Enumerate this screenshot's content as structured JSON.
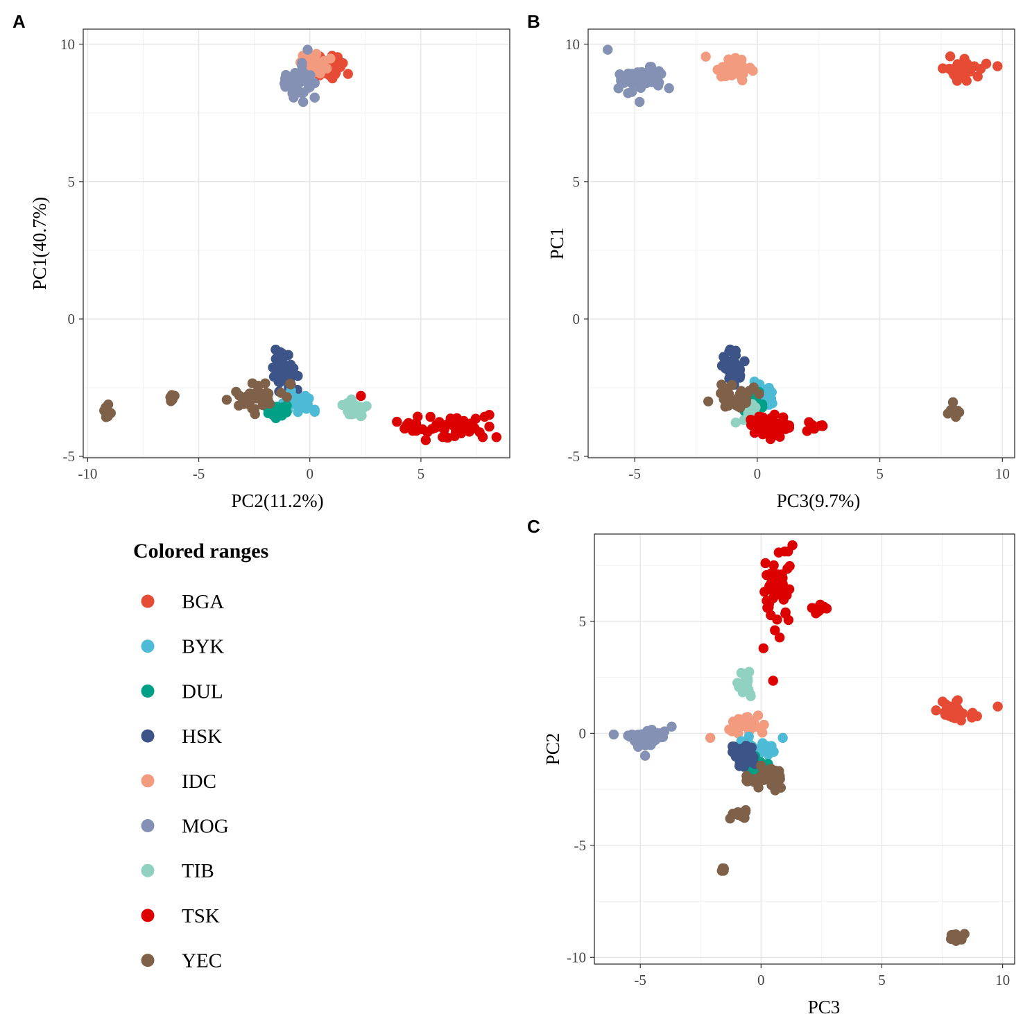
{
  "figure": {
    "panel_letters": [
      "A",
      "B",
      "C"
    ]
  },
  "colors": {
    "BGA": "#E64B35",
    "BYK": "#4DBBD5",
    "DUL": "#00A087",
    "HSK": "#3C5488",
    "IDC": "#F39B7F",
    "MOG": "#8491B4",
    "TIB": "#91D1C2",
    "TSK": "#DC0000",
    "YEC": "#7E6148"
  },
  "legend": {
    "title": "Colored ranges",
    "items": [
      "BGA",
      "BYK",
      "DUL",
      "HSK",
      "IDC",
      "MOG",
      "TIB",
      "TSK",
      "YEC"
    ]
  },
  "chart_data": [
    {
      "panel": "A",
      "type": "scatter",
      "xlabel": "PC2(11.2%)",
      "ylabel": "PC1(40.7%)",
      "xlim": [
        -10.2,
        9.0
      ],
      "ylim": [
        -5.05,
        10.55
      ],
      "xticks": [
        -10,
        -5,
        0,
        5
      ],
      "yticks": [
        -5,
        0,
        5,
        10
      ],
      "grid": true,
      "clusters": [
        {
          "group": "BGA",
          "center": [
            1.0,
            9.1
          ],
          "spread": [
            0.45,
            0.3
          ],
          "n": 28
        },
        {
          "group": "IDC",
          "center": [
            0.3,
            9.25
          ],
          "spread": [
            0.45,
            0.25
          ],
          "n": 26
        },
        {
          "group": "MOG",
          "center": [
            -0.5,
            8.7
          ],
          "spread": [
            0.45,
            0.4
          ],
          "n": 40
        },
        {
          "group": "HSK",
          "center": [
            -1.1,
            -1.85
          ],
          "spread": [
            0.35,
            0.5
          ],
          "n": 42
        },
        {
          "group": "BYK",
          "center": [
            -0.5,
            -2.95
          ],
          "spread": [
            0.45,
            0.3
          ],
          "n": 25
        },
        {
          "group": "DUL",
          "center": [
            -1.4,
            -3.35
          ],
          "spread": [
            0.4,
            0.2
          ],
          "n": 30
        },
        {
          "group": "TIB",
          "center": [
            2.0,
            -3.25
          ],
          "spread": [
            0.4,
            0.25
          ],
          "n": 22
        },
        {
          "group": "TSK",
          "center": [
            6.0,
            -3.85
          ],
          "spread": [
            1.3,
            0.35
          ],
          "n": 48
        },
        {
          "group": "YEC",
          "center": [
            -2.3,
            -2.9
          ],
          "spread": [
            0.9,
            0.35
          ],
          "n": 38
        },
        {
          "group": "YEC",
          "center": [
            -9.1,
            -3.4
          ],
          "spread": [
            0.2,
            0.25
          ],
          "n": 8
        },
        {
          "group": "YEC",
          "center": [
            -6.2,
            -2.9
          ],
          "spread": [
            0.15,
            0.1
          ],
          "n": 6
        }
      ],
      "points": [
        {
          "group": "MOG",
          "x": -0.1,
          "y": 9.8
        },
        {
          "group": "MOG",
          "x": -0.3,
          "y": 7.9
        },
        {
          "group": "MOG",
          "x": -1.1,
          "y": 8.45
        },
        {
          "group": "TSK",
          "x": 2.3,
          "y": -2.8
        },
        {
          "group": "TSK",
          "x": 8.4,
          "y": -4.3
        }
      ]
    },
    {
      "panel": "B",
      "type": "scatter",
      "xlabel": "PC3(9.7%)",
      "ylabel": "PC1",
      "xlim": [
        -6.9,
        10.5
      ],
      "ylim": [
        -5.05,
        10.55
      ],
      "xticks": [
        -5,
        0,
        5,
        10
      ],
      "yticks": [
        -5,
        0,
        5,
        10
      ],
      "grid": true,
      "clusters": [
        {
          "group": "MOG",
          "center": [
            -4.8,
            8.7
          ],
          "spread": [
            0.55,
            0.3
          ],
          "n": 42
        },
        {
          "group": "IDC",
          "center": [
            -0.9,
            9.1
          ],
          "spread": [
            0.45,
            0.3
          ],
          "n": 30
        },
        {
          "group": "BGA",
          "center": [
            8.3,
            9.15
          ],
          "spread": [
            0.65,
            0.3
          ],
          "n": 30
        },
        {
          "group": "HSK",
          "center": [
            -1.0,
            -1.75
          ],
          "spread": [
            0.3,
            0.4
          ],
          "n": 45
        },
        {
          "group": "BYK",
          "center": [
            0.2,
            -2.7
          ],
          "spread": [
            0.4,
            0.3
          ],
          "n": 20
        },
        {
          "group": "DUL",
          "center": [
            -0.3,
            -2.9
          ],
          "spread": [
            0.35,
            0.3
          ],
          "n": 20
        },
        {
          "group": "TIB",
          "center": [
            -0.4,
            -3.3
          ],
          "spread": [
            0.3,
            0.3
          ],
          "n": 10
        },
        {
          "group": "TSK",
          "center": [
            0.5,
            -3.9
          ],
          "spread": [
            0.5,
            0.3
          ],
          "n": 45
        },
        {
          "group": "TSK",
          "center": [
            2.4,
            -3.95
          ],
          "spread": [
            0.25,
            0.2
          ],
          "n": 8
        },
        {
          "group": "YEC",
          "center": [
            -0.8,
            -2.8
          ],
          "spread": [
            0.55,
            0.35
          ],
          "n": 38
        },
        {
          "group": "YEC",
          "center": [
            8.0,
            -3.35
          ],
          "spread": [
            0.2,
            0.2
          ],
          "n": 8
        }
      ],
      "points": [
        {
          "group": "MOG",
          "x": -6.1,
          "y": 9.8
        },
        {
          "group": "MOG",
          "x": -4.8,
          "y": 7.9
        },
        {
          "group": "MOG",
          "x": -3.6,
          "y": 8.4
        },
        {
          "group": "IDC",
          "x": -2.1,
          "y": 9.55
        },
        {
          "group": "BGA",
          "x": 9.8,
          "y": 9.2
        },
        {
          "group": "YEC",
          "x": -2.0,
          "y": -3.0
        }
      ]
    },
    {
      "panel": "C",
      "type": "scatter",
      "xlabel": "PC3",
      "ylabel": "PC2",
      "xlim": [
        -6.9,
        10.5
      ],
      "ylim": [
        -10.3,
        8.9
      ],
      "xticks": [
        -5,
        0,
        5,
        10
      ],
      "yticks": [
        -10,
        -5,
        0,
        5
      ],
      "grid": true,
      "clusters": [
        {
          "group": "TSK",
          "center": [
            0.6,
            6.2
          ],
          "spread": [
            0.45,
            1.2
          ],
          "n": 45
        },
        {
          "group": "TSK",
          "center": [
            2.4,
            5.6
          ],
          "spread": [
            0.25,
            0.15
          ],
          "n": 8
        },
        {
          "group": "TIB",
          "center": [
            -0.6,
            2.2
          ],
          "spread": [
            0.3,
            0.35
          ],
          "n": 22
        },
        {
          "group": "IDC",
          "center": [
            -0.6,
            0.4
          ],
          "spread": [
            0.45,
            0.25
          ],
          "n": 28
        },
        {
          "group": "MOG",
          "center": [
            -4.8,
            -0.2
          ],
          "spread": [
            0.5,
            0.25
          ],
          "n": 40
        },
        {
          "group": "BGA",
          "center": [
            8.0,
            1.0
          ],
          "spread": [
            0.6,
            0.3
          ],
          "n": 30
        },
        {
          "group": "BYK",
          "center": [
            -0.1,
            -0.6
          ],
          "spread": [
            0.45,
            0.3
          ],
          "n": 25
        },
        {
          "group": "DUL",
          "center": [
            -0.1,
            -1.6
          ],
          "spread": [
            0.4,
            0.4
          ],
          "n": 22
        },
        {
          "group": "HSK",
          "center": [
            -0.7,
            -1.0
          ],
          "spread": [
            0.3,
            0.35
          ],
          "n": 42
        },
        {
          "group": "YEC",
          "center": [
            0.2,
            -2.0
          ],
          "spread": [
            0.5,
            0.35
          ],
          "n": 34
        },
        {
          "group": "YEC",
          "center": [
            -0.8,
            -3.6
          ],
          "spread": [
            0.3,
            0.2
          ],
          "n": 10
        },
        {
          "group": "YEC",
          "center": [
            -1.6,
            -6.1
          ],
          "spread": [
            0.2,
            0.1
          ],
          "n": 6
        },
        {
          "group": "YEC",
          "center": [
            8.1,
            -9.1
          ],
          "spread": [
            0.25,
            0.12
          ],
          "n": 10
        }
      ],
      "points": [
        {
          "group": "TSK",
          "x": 1.3,
          "y": 8.4
        },
        {
          "group": "TSK",
          "x": 0.5,
          "y": 2.35
        },
        {
          "group": "TSK",
          "x": 0.1,
          "y": 3.8
        },
        {
          "group": "IDC",
          "x": -2.1,
          "y": -0.2
        },
        {
          "group": "BGA",
          "x": 9.8,
          "y": 1.2
        },
        {
          "group": "MOG",
          "x": -6.1,
          "y": -0.05
        },
        {
          "group": "MOG",
          "x": -3.7,
          "y": 0.3
        },
        {
          "group": "MOG",
          "x": -4.8,
          "y": -1.0
        },
        {
          "group": "BYK",
          "x": 0.9,
          "y": -0.2
        }
      ]
    }
  ]
}
